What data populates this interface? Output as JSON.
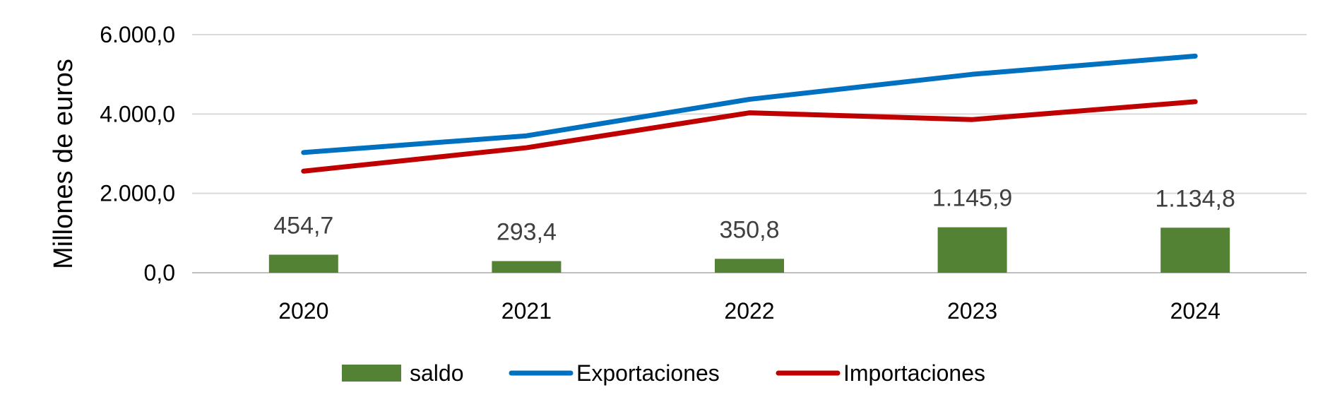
{
  "chart_data": {
    "type": "bar",
    "categories": [
      "2020",
      "2021",
      "2022",
      "2023",
      "2024"
    ],
    "ylabel": "Millones de euros",
    "ylim": [
      0,
      6000
    ],
    "yticks": [
      0,
      2000,
      4000,
      6000
    ],
    "ytick_labels": [
      "0,0",
      "2.000,0",
      "4.000,0",
      "6.000,0"
    ],
    "grid": true,
    "legend_position": "bottom",
    "series": [
      {
        "name": "saldo",
        "type": "bar",
        "color": "#548235",
        "values": [
          454.7,
          293.4,
          350.8,
          1145.9,
          1134.8
        ],
        "labels": [
          "454,7",
          "293,4",
          "350,8",
          "1.145,9",
          "1.134,8"
        ]
      },
      {
        "name": "Exportaciones",
        "type": "line",
        "color": "#0070C0",
        "values": [
          3030,
          3450,
          4370,
          5000,
          5460
        ]
      },
      {
        "name": "Importaciones",
        "type": "line",
        "color": "#C00000",
        "values": [
          2560,
          3150,
          4030,
          3860,
          4310
        ]
      }
    ]
  }
}
